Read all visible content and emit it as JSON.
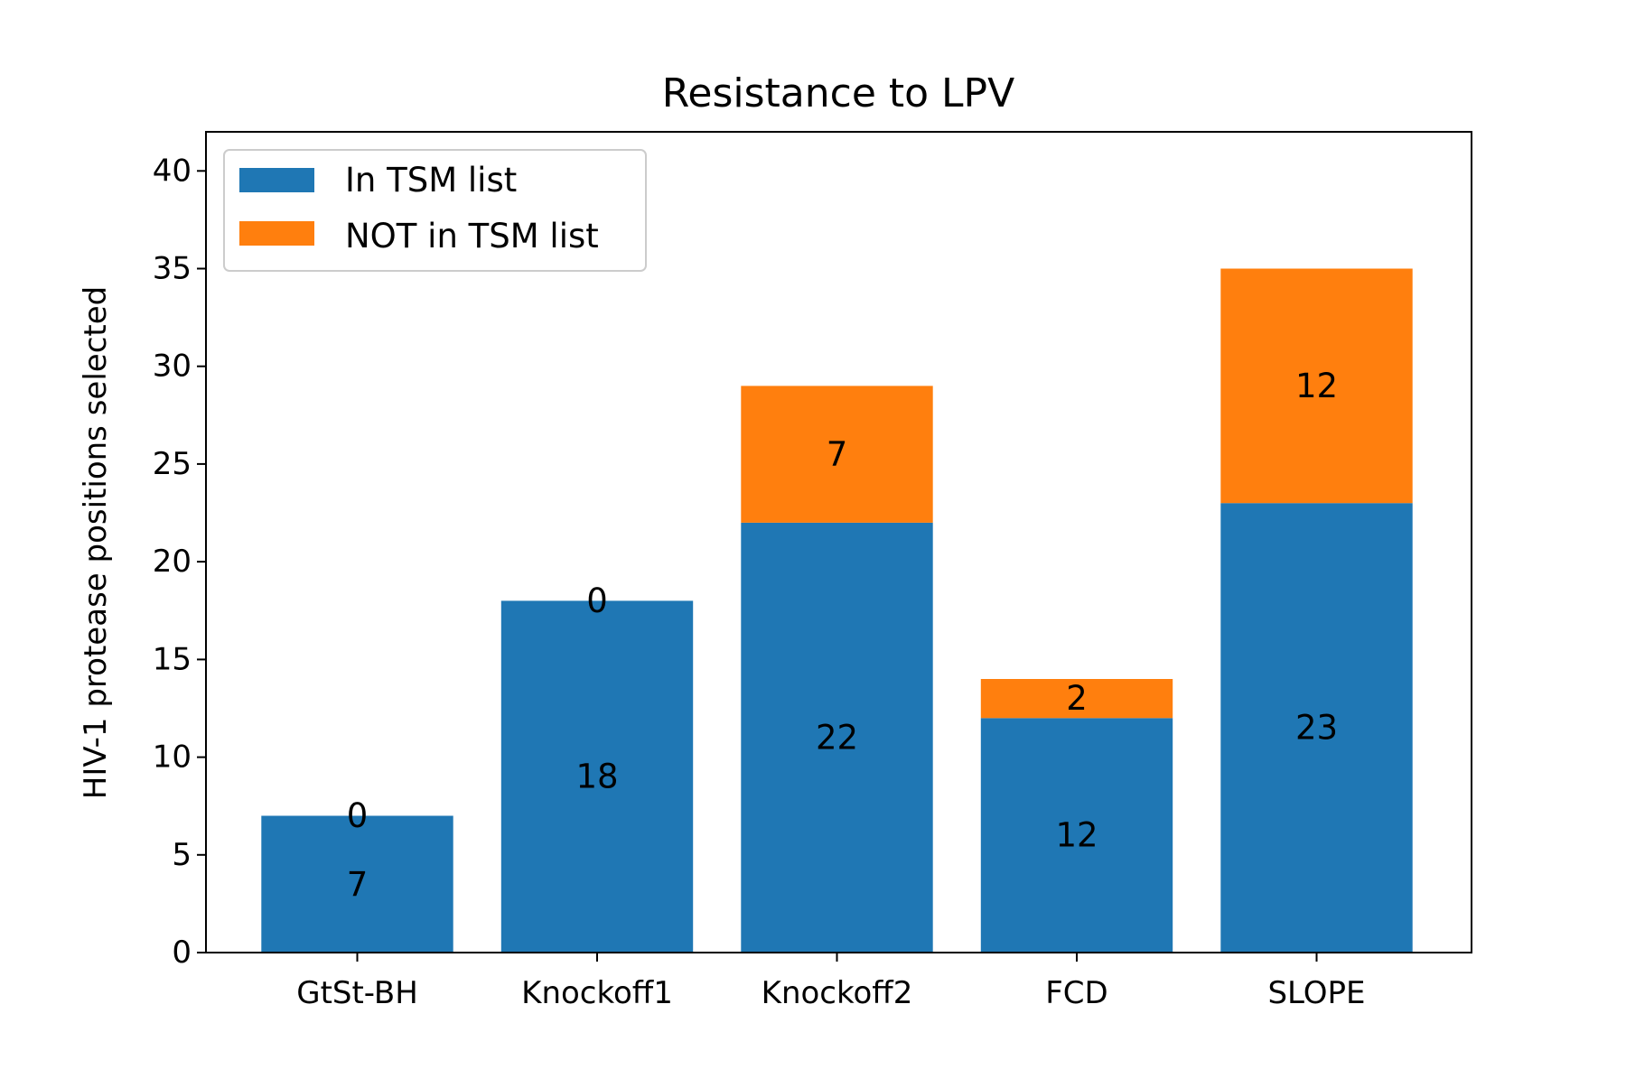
{
  "chart_data": {
    "type": "bar",
    "stacked": true,
    "title": "Resistance to LPV",
    "xlabel": "",
    "ylabel": "HIV-1 protease positions selected",
    "categories": [
      "GtSt-BH",
      "Knockoff1",
      "Knockoff2",
      "FCD",
      "SLOPE"
    ],
    "series": [
      {
        "name": "In TSM list",
        "color": "#1f77b4",
        "values": [
          7,
          18,
          22,
          12,
          23
        ]
      },
      {
        "name": "NOT in TSM list",
        "color": "#ff7f0e",
        "values": [
          0,
          0,
          7,
          2,
          12
        ]
      }
    ],
    "ylim": [
      0,
      42
    ],
    "yticks": [
      0,
      5,
      10,
      15,
      20,
      25,
      30,
      35,
      40
    ],
    "grid": false,
    "legend_position": "upper-left",
    "data_labels": true
  }
}
